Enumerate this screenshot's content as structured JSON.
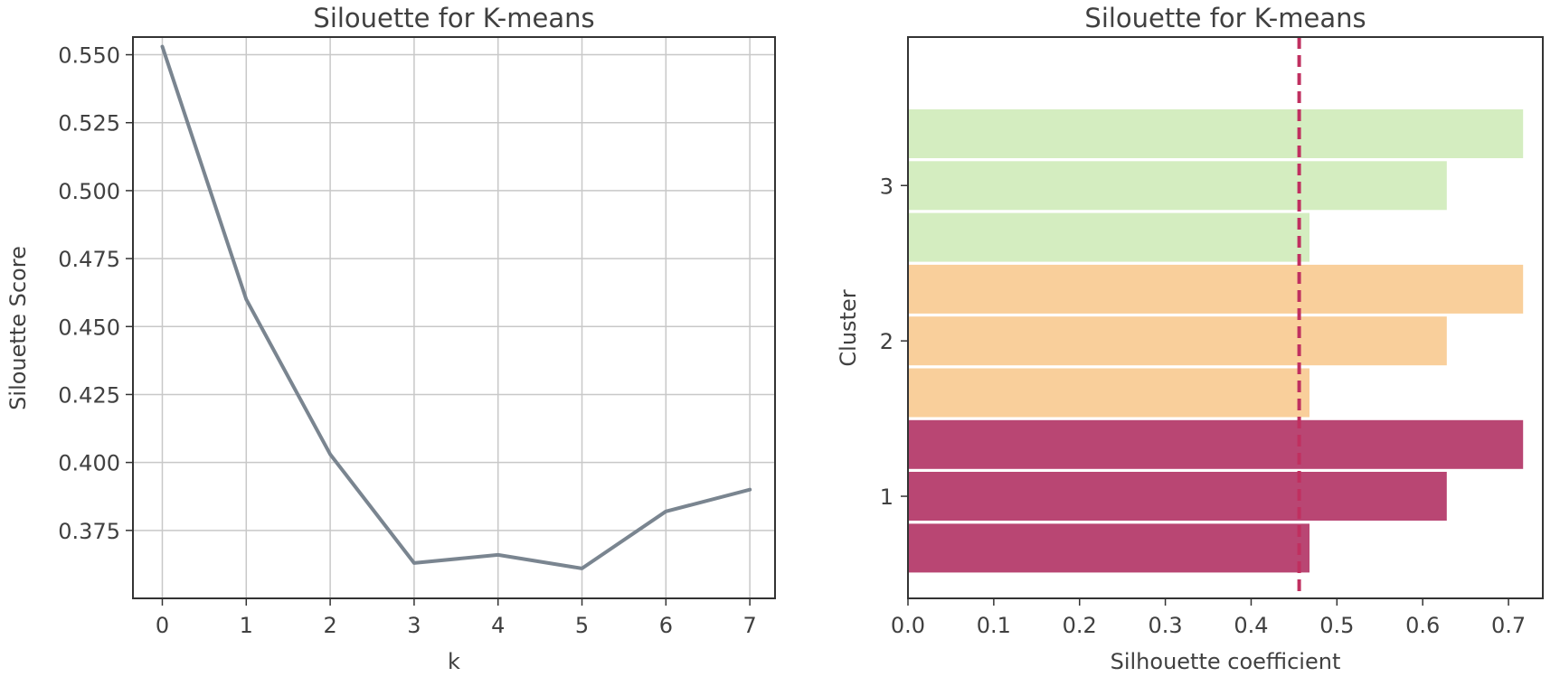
{
  "chart_data": [
    {
      "type": "line",
      "title": "Silouette for K-means",
      "xlabel": "k",
      "ylabel": "Silouette Score",
      "x": [
        0,
        1,
        2,
        3,
        4,
        5,
        6,
        7
      ],
      "series": [
        {
          "values": [
            0.553,
            0.46,
            0.403,
            0.363,
            0.366,
            0.361,
            0.382,
            0.39
          ],
          "color": "#7a8590"
        }
      ],
      "xlim": [
        -0.35,
        7.3
      ],
      "ylim": [
        0.35,
        0.5565
      ],
      "xticks": [
        0,
        1,
        2,
        3,
        4,
        5,
        6,
        7
      ],
      "xtick_labels": [
        "0",
        "1",
        "2",
        "3",
        "4",
        "5",
        "6",
        "7"
      ],
      "yticks": [
        0.375,
        0.4,
        0.425,
        0.45,
        0.475,
        0.5,
        0.525,
        0.55
      ],
      "ytick_labels": [
        "0.375",
        "0.400",
        "0.425",
        "0.450",
        "0.475",
        "0.500",
        "0.525",
        "0.550"
      ],
      "grid": true,
      "legend": false
    },
    {
      "type": "bar",
      "orientation": "horizontal",
      "title": "Silouette for K-means",
      "xlabel": "Silhouette coefficient",
      "ylabel": "Cluster",
      "bars": [
        {
          "cluster": "1",
          "value": 0.468
        },
        {
          "cluster": "1",
          "value": 0.628
        },
        {
          "cluster": "1",
          "value": 0.717
        },
        {
          "cluster": "2",
          "value": 0.468
        },
        {
          "cluster": "2",
          "value": 0.628
        },
        {
          "cluster": "2",
          "value": 0.717
        },
        {
          "cluster": "3",
          "value": 0.468
        },
        {
          "cluster": "3",
          "value": 0.628
        },
        {
          "cluster": "3",
          "value": 0.717
        }
      ],
      "cluster_colors": {
        "1": "#b94673",
        "2": "#f9cf9b",
        "3": "#d4edc0"
      },
      "mean_line": {
        "value": 0.456,
        "color": "#c03060",
        "style": "dashed"
      },
      "xlim": [
        0.0,
        0.74
      ],
      "xticks": [
        0.0,
        0.1,
        0.2,
        0.3,
        0.4,
        0.5,
        0.6,
        0.7
      ],
      "xtick_labels": [
        "0.0",
        "0.1",
        "0.2",
        "0.3",
        "0.4",
        "0.5",
        "0.6",
        "0.7"
      ],
      "yticks": [
        "1",
        "2",
        "3"
      ],
      "grid": false,
      "legend": false
    }
  ]
}
